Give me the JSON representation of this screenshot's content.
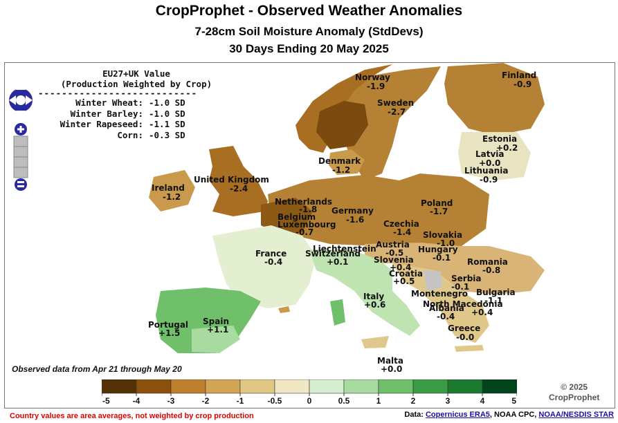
{
  "title": "CropProphet - Observed Weather Anomalies",
  "subtitle": "7-28cm Soil Moisture Anomaly (StdDevs)",
  "period": "30 Days Ending 20 May 2025",
  "summary": {
    "heading1": "EU27+UK Value",
    "heading2": "(Production Weighted by Crop)",
    "divider": "---------------------------",
    "rows": [
      {
        "label": "Winter Wheat:",
        "value": "-1.0 SD"
      },
      {
        "label": "Winter Barley:",
        "value": "-1.0 SD"
      },
      {
        "label": "Winter Rapeseed:",
        "value": "-1.1 SD"
      },
      {
        "label": "Corn:",
        "value": "-0.3 SD"
      }
    ]
  },
  "countries": [
    {
      "name": "Norway",
      "value": "-1.9"
    },
    {
      "name": "Sweden",
      "value": "-2.7"
    },
    {
      "name": "Finland",
      "value": "-0.9"
    },
    {
      "name": "Estonia",
      "value": "+0.2"
    },
    {
      "name": "Latvia",
      "value": "+0.0"
    },
    {
      "name": "Lithuania",
      "value": "-0.9"
    },
    {
      "name": "Denmark",
      "value": "-1.2"
    },
    {
      "name": "United Kingdom",
      "value": "-2.4"
    },
    {
      "name": "Ireland",
      "value": "-1.2"
    },
    {
      "name": "Netherlands",
      "value": "-1.8"
    },
    {
      "name": "Belgium",
      "value": ""
    },
    {
      "name": "Luxembourg",
      "value": "-0.7"
    },
    {
      "name": "Germany",
      "value": "-1.6"
    },
    {
      "name": "Poland",
      "value": "-1.7"
    },
    {
      "name": "Czechia",
      "value": "-1.4"
    },
    {
      "name": "Slovakia",
      "value": "-1.0"
    },
    {
      "name": "Austria",
      "value": "-0.5"
    },
    {
      "name": "Hungary",
      "value": "-0.1"
    },
    {
      "name": "Liechtenstein",
      "value": ""
    },
    {
      "name": "Switzerland",
      "value": "+0.1"
    },
    {
      "name": "France",
      "value": "-0.4"
    },
    {
      "name": "Slovenia",
      "value": "+0.4"
    },
    {
      "name": "Croatia",
      "value": "+0.5"
    },
    {
      "name": "Romania",
      "value": "-0.8"
    },
    {
      "name": "Serbia",
      "value": "-0.1"
    },
    {
      "name": "Bulgaria",
      "value": "-1.1"
    },
    {
      "name": "Montenegro",
      "value": ""
    },
    {
      "name": "North Macedonia",
      "value": "+0.4"
    },
    {
      "name": "Albania",
      "value": "-0.4"
    },
    {
      "name": "Greece",
      "value": "-0.0"
    },
    {
      "name": "Italy",
      "value": "+0.6"
    },
    {
      "name": "Spain",
      "value": "+1.1"
    },
    {
      "name": "Portugal",
      "value": "+1.5"
    },
    {
      "name": "Malta",
      "value": "+0.0"
    }
  ],
  "observed_note": "Observed data from Apr 21 through May 20",
  "legend": {
    "ticks": [
      "-5",
      "-4",
      "-3",
      "-2",
      "-1",
      "-0.5",
      "0",
      "0.5",
      "1",
      "2",
      "3",
      "4",
      "5"
    ],
    "colors": [
      "#543005",
      "#8c510a",
      "#bf812d",
      "#d2a554",
      "#e1c784",
      "#f1e7c2",
      "#d6efd0",
      "#a7dba0",
      "#6fbf6b",
      "#3a9c45",
      "#1a7a2e",
      "#00441b"
    ]
  },
  "copyright_year": "© 2025",
  "copyright_name": "CropProphet",
  "footer_note": "Country values are area averages, not weighted by crop production",
  "sources": {
    "prefix": "Data:",
    "link1": "Copernicus ERA5",
    "middle": ", NOAA CPC,",
    "link2": "NOAA/NESDIS STAR"
  },
  "colors": {
    "very_dry": "#7a4a0e",
    "dry": "#a86e22",
    "mid_dry": "#c99a4c",
    "slight_dry": "#e0c88a",
    "neutral": "#eaf2dc",
    "wet": "#a7dba0",
    "very_wet": "#4f9e55",
    "water": "#ffffff",
    "footer_red": "#e00000"
  }
}
